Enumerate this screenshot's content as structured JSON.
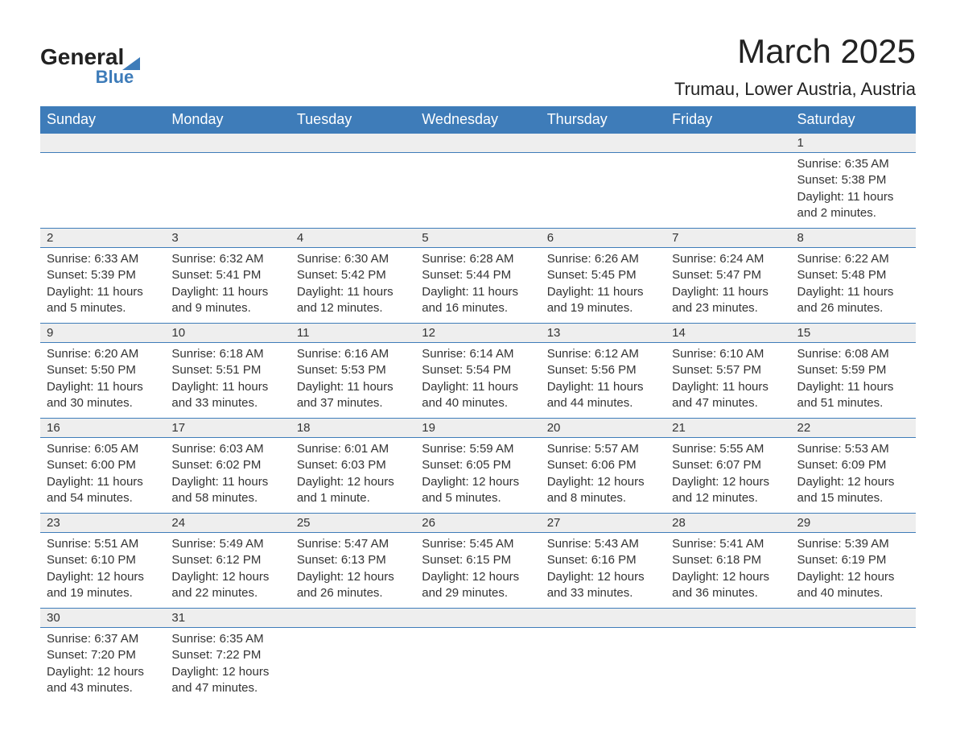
{
  "logo": {
    "line1": "General",
    "line2": "Blue"
  },
  "header": {
    "month_title": "March 2025",
    "location": "Trumau, Lower Austria, Austria"
  },
  "colors": {
    "header_bg": "#3e7cb9",
    "header_text": "#ffffff",
    "day_num_bg": "#eeeeee",
    "body_text": "#333333",
    "border": "#3e7cb9",
    "page_bg": "#ffffff"
  },
  "calendar": {
    "day_labels": [
      "Sunday",
      "Monday",
      "Tuesday",
      "Wednesday",
      "Thursday",
      "Friday",
      "Saturday"
    ],
    "weeks": [
      [
        null,
        null,
        null,
        null,
        null,
        null,
        {
          "day": "1",
          "sunrise": "6:35 AM",
          "sunset": "5:38 PM",
          "daylight": "11 hours and 2 minutes."
        }
      ],
      [
        {
          "day": "2",
          "sunrise": "6:33 AM",
          "sunset": "5:39 PM",
          "daylight": "11 hours and 5 minutes."
        },
        {
          "day": "3",
          "sunrise": "6:32 AM",
          "sunset": "5:41 PM",
          "daylight": "11 hours and 9 minutes."
        },
        {
          "day": "4",
          "sunrise": "6:30 AM",
          "sunset": "5:42 PM",
          "daylight": "11 hours and 12 minutes."
        },
        {
          "day": "5",
          "sunrise": "6:28 AM",
          "sunset": "5:44 PM",
          "daylight": "11 hours and 16 minutes."
        },
        {
          "day": "6",
          "sunrise": "6:26 AM",
          "sunset": "5:45 PM",
          "daylight": "11 hours and 19 minutes."
        },
        {
          "day": "7",
          "sunrise": "6:24 AM",
          "sunset": "5:47 PM",
          "daylight": "11 hours and 23 minutes."
        },
        {
          "day": "8",
          "sunrise": "6:22 AM",
          "sunset": "5:48 PM",
          "daylight": "11 hours and 26 minutes."
        }
      ],
      [
        {
          "day": "9",
          "sunrise": "6:20 AM",
          "sunset": "5:50 PM",
          "daylight": "11 hours and 30 minutes."
        },
        {
          "day": "10",
          "sunrise": "6:18 AM",
          "sunset": "5:51 PM",
          "daylight": "11 hours and 33 minutes."
        },
        {
          "day": "11",
          "sunrise": "6:16 AM",
          "sunset": "5:53 PM",
          "daylight": "11 hours and 37 minutes."
        },
        {
          "day": "12",
          "sunrise": "6:14 AM",
          "sunset": "5:54 PM",
          "daylight": "11 hours and 40 minutes."
        },
        {
          "day": "13",
          "sunrise": "6:12 AM",
          "sunset": "5:56 PM",
          "daylight": "11 hours and 44 minutes."
        },
        {
          "day": "14",
          "sunrise": "6:10 AM",
          "sunset": "5:57 PM",
          "daylight": "11 hours and 47 minutes."
        },
        {
          "day": "15",
          "sunrise": "6:08 AM",
          "sunset": "5:59 PM",
          "daylight": "11 hours and 51 minutes."
        }
      ],
      [
        {
          "day": "16",
          "sunrise": "6:05 AM",
          "sunset": "6:00 PM",
          "daylight": "11 hours and 54 minutes."
        },
        {
          "day": "17",
          "sunrise": "6:03 AM",
          "sunset": "6:02 PM",
          "daylight": "11 hours and 58 minutes."
        },
        {
          "day": "18",
          "sunrise": "6:01 AM",
          "sunset": "6:03 PM",
          "daylight": "12 hours and 1 minute."
        },
        {
          "day": "19",
          "sunrise": "5:59 AM",
          "sunset": "6:05 PM",
          "daylight": "12 hours and 5 minutes."
        },
        {
          "day": "20",
          "sunrise": "5:57 AM",
          "sunset": "6:06 PM",
          "daylight": "12 hours and 8 minutes."
        },
        {
          "day": "21",
          "sunrise": "5:55 AM",
          "sunset": "6:07 PM",
          "daylight": "12 hours and 12 minutes."
        },
        {
          "day": "22",
          "sunrise": "5:53 AM",
          "sunset": "6:09 PM",
          "daylight": "12 hours and 15 minutes."
        }
      ],
      [
        {
          "day": "23",
          "sunrise": "5:51 AM",
          "sunset": "6:10 PM",
          "daylight": "12 hours and 19 minutes."
        },
        {
          "day": "24",
          "sunrise": "5:49 AM",
          "sunset": "6:12 PM",
          "daylight": "12 hours and 22 minutes."
        },
        {
          "day": "25",
          "sunrise": "5:47 AM",
          "sunset": "6:13 PM",
          "daylight": "12 hours and 26 minutes."
        },
        {
          "day": "26",
          "sunrise": "5:45 AM",
          "sunset": "6:15 PM",
          "daylight": "12 hours and 29 minutes."
        },
        {
          "day": "27",
          "sunrise": "5:43 AM",
          "sunset": "6:16 PM",
          "daylight": "12 hours and 33 minutes."
        },
        {
          "day": "28",
          "sunrise": "5:41 AM",
          "sunset": "6:18 PM",
          "daylight": "12 hours and 36 minutes."
        },
        {
          "day": "29",
          "sunrise": "5:39 AM",
          "sunset": "6:19 PM",
          "daylight": "12 hours and 40 minutes."
        }
      ],
      [
        {
          "day": "30",
          "sunrise": "6:37 AM",
          "sunset": "7:20 PM",
          "daylight": "12 hours and 43 minutes."
        },
        {
          "day": "31",
          "sunrise": "6:35 AM",
          "sunset": "7:22 PM",
          "daylight": "12 hours and 47 minutes."
        },
        null,
        null,
        null,
        null,
        null
      ]
    ],
    "labels": {
      "sunrise_prefix": "Sunrise: ",
      "sunset_prefix": "Sunset: ",
      "daylight_prefix": "Daylight: "
    }
  }
}
